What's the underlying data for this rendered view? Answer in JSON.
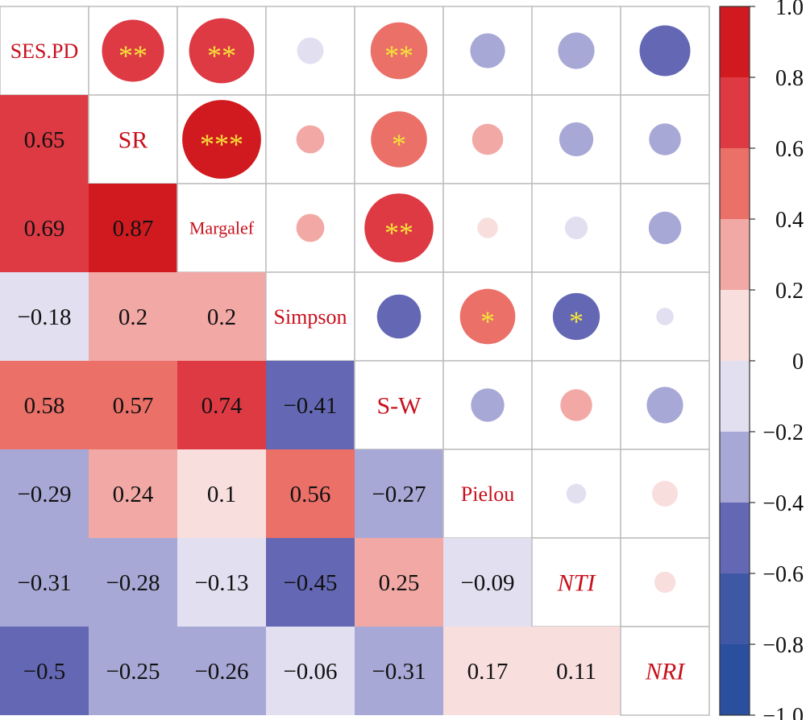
{
  "chart_data": {
    "type": "heatmap",
    "variables": [
      "SES.PD",
      "SR",
      "Margalef",
      "Simpson",
      "S-W",
      "Pielou",
      "NTI",
      "NRI"
    ],
    "italic_variables": [
      "NTI",
      "NRI"
    ],
    "lower_triangle": "values",
    "upper_triangle": "circles sized by |r|",
    "matrix": [
      [
        1,
        0.65,
        0.69,
        -0.18,
        0.58,
        -0.29,
        -0.31,
        -0.5
      ],
      [
        0.65,
        1,
        0.87,
        0.2,
        0.57,
        0.24,
        -0.28,
        -0.25
      ],
      [
        0.69,
        0.87,
        1,
        0.2,
        0.74,
        0.1,
        -0.13,
        -0.26
      ],
      [
        -0.18,
        0.2,
        0.2,
        1,
        -0.41,
        0.56,
        -0.45,
        -0.06
      ],
      [
        0.58,
        0.57,
        0.74,
        -0.41,
        1,
        -0.27,
        0.25,
        -0.31
      ],
      [
        -0.29,
        0.24,
        0.1,
        0.56,
        -0.27,
        1,
        -0.09,
        0.17
      ],
      [
        -0.31,
        -0.28,
        -0.13,
        -0.45,
        0.25,
        -0.09,
        1,
        0.11
      ],
      [
        -0.5,
        -0.25,
        -0.26,
        -0.06,
        -0.31,
        0.17,
        0.11,
        1
      ]
    ],
    "value_labels": [
      [
        "",
        "",
        "",
        "",
        "",
        "",
        "",
        ""
      ],
      [
        "0.65",
        "",
        "",
        "",
        "",
        "",
        "",
        ""
      ],
      [
        "0.69",
        "0.87",
        "",
        "",
        "",
        "",
        "",
        ""
      ],
      [
        "−0.18",
        "0.2",
        "0.2",
        "",
        "",
        "",
        "",
        ""
      ],
      [
        "0.58",
        "0.57",
        "0.74",
        "−0.41",
        "",
        "",
        "",
        ""
      ],
      [
        "−0.29",
        "0.24",
        "0.1",
        "0.56",
        "−0.27",
        "",
        "",
        ""
      ],
      [
        "−0.31",
        "−0.28",
        "−0.13",
        "−0.45",
        "0.25",
        "−0.09",
        "",
        ""
      ],
      [
        "−0.5",
        "−0.25",
        "−0.26",
        "−0.06",
        "−0.31",
        "0.17",
        "0.11",
        ""
      ]
    ],
    "significance": [
      [
        "",
        "**",
        "**",
        "",
        "**",
        "",
        "",
        ""
      ],
      [
        "",
        "",
        "***",
        "",
        "*",
        "",
        "",
        ""
      ],
      [
        "",
        "",
        "",
        "",
        "**",
        "",
        "",
        ""
      ],
      [
        "",
        "",
        "",
        "",
        "",
        "*",
        "*",
        ""
      ],
      [
        "",
        "",
        "",
        "",
        "",
        "",
        "",
        ""
      ],
      [
        "",
        "",
        "",
        "",
        "",
        "",
        "",
        ""
      ],
      [
        "",
        "",
        "",
        "",
        "",
        "",
        "",
        ""
      ],
      [
        "",
        "",
        "",
        "",
        "",
        "",
        "",
        ""
      ]
    ],
    "color_range": [
      -1,
      1
    ],
    "color_bins": [
      {
        "from": -1.0,
        "to": -0.8,
        "color": "#2a4f9e"
      },
      {
        "from": -0.8,
        "to": -0.6,
        "color": "#3f58a6"
      },
      {
        "from": -0.6,
        "to": -0.4,
        "color": "#6468b4"
      },
      {
        "from": -0.4,
        "to": -0.2,
        "color": "#a8a8d6"
      },
      {
        "from": -0.2,
        "to": 0.0,
        "color": "#e2e0f0"
      },
      {
        "from": 0.0,
        "to": 0.2,
        "color": "#f9dede"
      },
      {
        "from": 0.2,
        "to": 0.4,
        "color": "#f2a9a6"
      },
      {
        "from": 0.4,
        "to": 0.6,
        "color": "#ea7068"
      },
      {
        "from": 0.6,
        "to": 0.8,
        "color": "#de3a44"
      },
      {
        "from": 0.8,
        "to": 1.0,
        "color": "#d11a1f"
      }
    ],
    "colorbar_ticks": [
      "1.0",
      "0.8",
      "0.6",
      "0.4",
      "0.2",
      "0",
      "−0.2",
      "−0.4",
      "−0.6",
      "−0.8",
      "−1.0"
    ],
    "colors": {
      "label_text": "#c8101c",
      "value_text": "#111111",
      "star_text": "#f5e33a",
      "grid": "#bdbdbd"
    }
  }
}
